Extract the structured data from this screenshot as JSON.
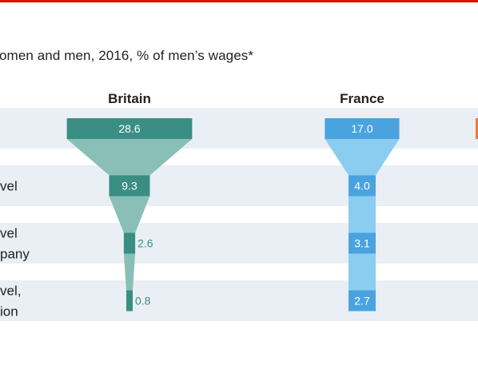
{
  "subtitle": "omen and men, 2016, % of men’s wages*",
  "colors": {
    "top_rule": "#e3120b",
    "row_band": "#e9eff5",
    "britain_bar": "#3a8e83",
    "britain_funnel": "#89bfb7",
    "france_bar": "#4aa3df",
    "france_funnel": "#8bcdf0",
    "third_column_accent": "#f07a3a"
  },
  "row_labels": [
    [
      ""
    ],
    [
      "vel"
    ],
    [
      "vel",
      "pany"
    ],
    [
      "vel,",
      "ion"
    ]
  ],
  "chart_data": {
    "type": "bar",
    "subtitle": "omen and men, 2016, % of men’s wages*",
    "categories": [
      "",
      "vel",
      "vel pany",
      "vel, ion"
    ],
    "series": [
      {
        "name": "Britain",
        "values": [
          28.6,
          9.3,
          2.6,
          0.8
        ]
      },
      {
        "name": "France",
        "values": [
          17.0,
          4.0,
          3.1,
          2.7
        ]
      }
    ]
  }
}
